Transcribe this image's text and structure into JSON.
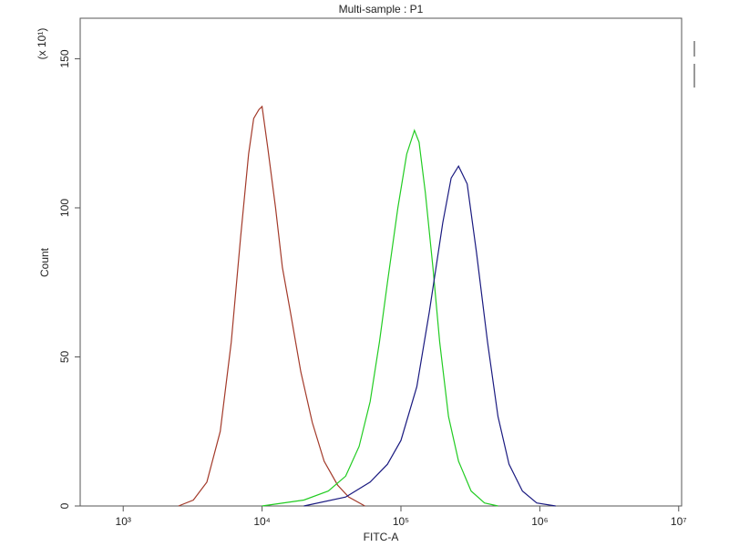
{
  "chart_data": {
    "type": "line",
    "title": "Multi-sample : P1",
    "x_label": "FITC-A",
    "y_label": "Count",
    "y_multiplier": "(x 10¹)",
    "log_x": true,
    "xlim": [
      490,
      10500000
    ],
    "ylim": [
      0,
      163.6
    ],
    "xticks": [
      {
        "value": 1000,
        "label": "10³"
      },
      {
        "value": 10000,
        "label": "10⁴"
      },
      {
        "value": 100000,
        "label": "10⁵"
      },
      {
        "value": 1000000,
        "label": "10⁶"
      },
      {
        "value": 10000000,
        "label": "10⁷"
      }
    ],
    "yticks": [
      0,
      50,
      100,
      150
    ],
    "series": [
      {
        "color": "#a33a2a",
        "x": [
          2500,
          3200,
          4000,
          5000,
          6000,
          7000,
          8000,
          8700,
          9500,
          10000,
          11000,
          12500,
          14000,
          16000,
          19000,
          23000,
          28000,
          35000,
          42000,
          55000
        ],
        "values": [
          0,
          2,
          8,
          25,
          55,
          90,
          118,
          130,
          133,
          134,
          120,
          100,
          80,
          65,
          45,
          28,
          15,
          7,
          3,
          0
        ]
      },
      {
        "color": "#22cc22",
        "x": [
          10000,
          20000,
          30000,
          40000,
          50000,
          60000,
          70000,
          80000,
          95000,
          110000,
          125000,
          135000,
          150000,
          170000,
          190000,
          220000,
          260000,
          320000,
          400000,
          500000
        ],
        "values": [
          0,
          2,
          5,
          10,
          20,
          35,
          55,
          75,
          100,
          118,
          126,
          122,
          105,
          80,
          55,
          30,
          15,
          5,
          1,
          0
        ]
      },
      {
        "color": "#1a1a80",
        "x": [
          20000,
          40000,
          60000,
          80000,
          100000,
          130000,
          160000,
          200000,
          230000,
          260000,
          300000,
          350000,
          420000,
          500000,
          600000,
          750000,
          950000,
          1300000
        ],
        "values": [
          0,
          3,
          8,
          14,
          22,
          40,
          65,
          95,
          110,
          114,
          108,
          85,
          55,
          30,
          14,
          5,
          1,
          0
        ]
      }
    ]
  }
}
